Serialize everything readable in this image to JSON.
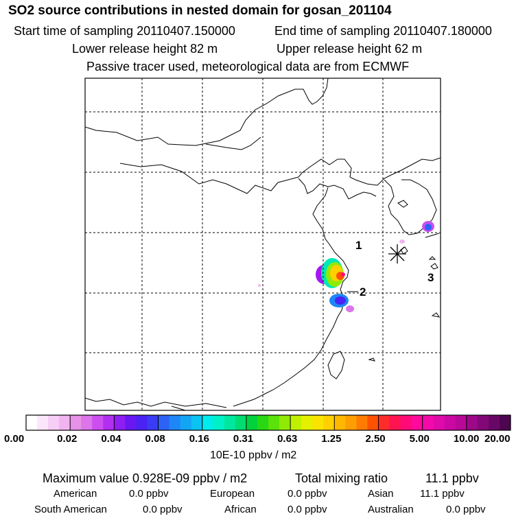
{
  "header": {
    "title": "SO2 source contributions in nested domain for gosan_201104",
    "start_label": "Start time of sampling 20110407.150000",
    "end_label": "End time of sampling 20110407.180000",
    "lower_label": "Lower release height   82 m",
    "upper_label": "Upper release height   62 m",
    "note": "Passive tracer used, meteorological data are from ECMWF"
  },
  "map": {
    "region_labels": [
      "1",
      "2",
      "3"
    ],
    "receptor_marker": "station-star-icon"
  },
  "colorbar": {
    "ticks": [
      "0.00",
      "0.02",
      "0.04",
      "0.08",
      "0.16",
      "0.31",
      "0.63",
      "1.25",
      "2.50",
      "5.00",
      "10.00",
      "20.00"
    ],
    "colors": [
      "#ffffff",
      "#fbe6fb",
      "#f6cef6",
      "#f0b4f0",
      "#e692e6",
      "#dc74ea",
      "#cc4eef",
      "#b22ef0",
      "#8e1ef2",
      "#6a18f2",
      "#4a22f4",
      "#3a3cf4",
      "#2d62f6",
      "#1e86f6",
      "#14a4f4",
      "#0cc2f2",
      "#00ecec",
      "#00f0c8",
      "#00e8a0",
      "#00dc70",
      "#00d23c",
      "#28d814",
      "#5ae20a",
      "#90ea06",
      "#c0f000",
      "#e4f000",
      "#f8e400",
      "#ffd000",
      "#ffb800",
      "#ff9e00",
      "#ff7c00",
      "#ff5200",
      "#ff2c2c",
      "#ff1450",
      "#ff0a78",
      "#ff0a9c",
      "#f20aaa",
      "#e00aaa",
      "#cc08a4",
      "#b80898",
      "#9c0888",
      "#820878",
      "#680866",
      "#4e0650"
    ],
    "units": "10E-10 ppbv / m2"
  },
  "summary": {
    "max_label": "Maximum value  0.928E-09 ppbv / m2",
    "total_label": "Total mixing ratio",
    "total_value": "11.1 ppbv",
    "row1": [
      {
        "name": "American",
        "value": "0.0 ppbv"
      },
      {
        "name": "European",
        "value": "0.0 ppbv"
      },
      {
        "name": "Asian",
        "value": "11.1 ppbv"
      }
    ],
    "row2": [
      {
        "name": "South American",
        "value": "0.0 ppbv"
      },
      {
        "name": "African",
        "value": "0.0 ppbv"
      },
      {
        "name": "Australian",
        "value": "0.0 ppbv"
      }
    ]
  }
}
